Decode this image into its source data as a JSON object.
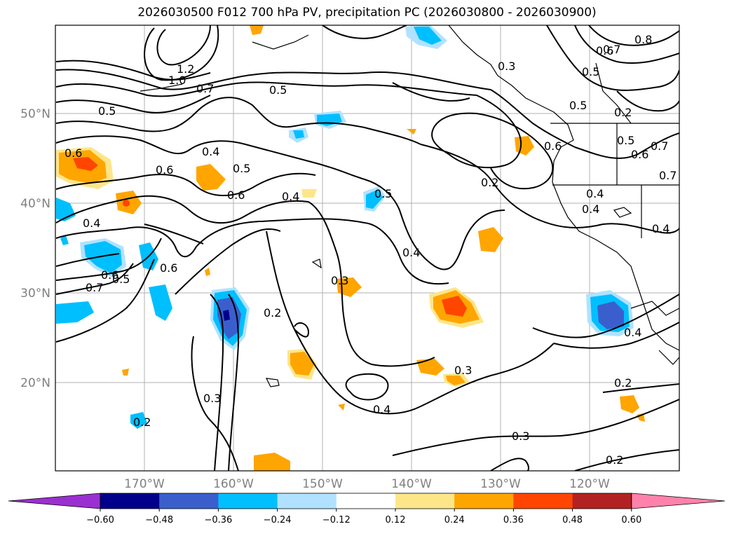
{
  "title": "2026030500 F012 700 hPa PV, precipitation PC (2026030800 - 2026030900)",
  "map": {
    "lon_ticks": [
      "170°W",
      "160°W",
      "150°W",
      "140°W",
      "130°W",
      "120°W"
    ],
    "lat_ticks": [
      "50°N",
      "40°N",
      "30°N",
      "20°N"
    ],
    "contour_labels": [
      "0.8",
      "0.7",
      "0.6",
      "0.5",
      "0.5",
      "1.2",
      "1.0",
      "0.7",
      "0.5",
      "0.5",
      "0.6",
      "0.4",
      "0.6",
      "0.5",
      "0.4",
      "0.6",
      "0.5",
      "0.4",
      "0.2",
      "0.4",
      "0.6",
      "0.7",
      "0.4",
      "0.6",
      "0.5",
      "0.7",
      "0.3",
      "0.2",
      "0.4",
      "0.3",
      "0.3",
      "0.4",
      "0.3",
      "0.2",
      "0.4",
      "0.2",
      "0.3",
      "0.2",
      "0.2",
      "0.6",
      "0.5",
      "0.7",
      "0.4",
      "0.6"
    ]
  },
  "colorbar": {
    "ticks": [
      "−0.60",
      "−0.48",
      "−0.36",
      "−0.24",
      "−0.12",
      "0.12",
      "0.24",
      "0.36",
      "0.48",
      "0.60"
    ],
    "colors": [
      "#9a30d0",
      "#00008b",
      "#3a5fcd",
      "#00bfff",
      "#b0e2ff",
      "#ffffff",
      "#fde68a",
      "#ffa500",
      "#ff4500",
      "#b22222",
      "#ff82ab"
    ]
  },
  "colors": {
    "positive_fill": "#ffa500",
    "negative_fill": "#00bfff",
    "grid": "#b0b0b0"
  }
}
